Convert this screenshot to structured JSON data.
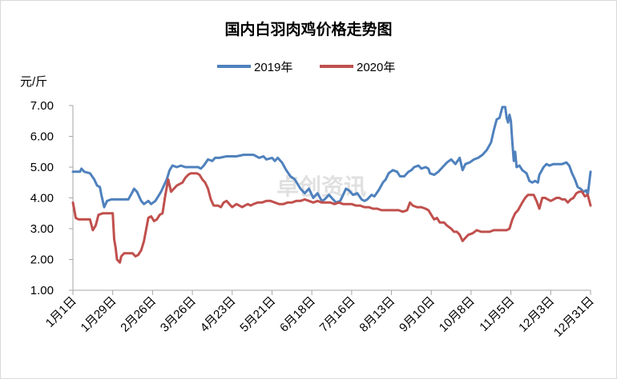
{
  "chart_data": {
    "type": "line",
    "title": "国内白羽肉鸡价格走势图",
    "unit_label": "元/斤",
    "watermark": "卓创资讯",
    "legend_position": "top-center",
    "grid": false,
    "ylim": [
      1.0,
      7.0
    ],
    "yticks": [
      "1.00",
      "2.00",
      "3.00",
      "4.00",
      "5.00",
      "6.00",
      "7.00"
    ],
    "xticks": [
      "1月1日",
      "1月29日",
      "2月26日",
      "3月26日",
      "4月23日",
      "5月21日",
      "6月18日",
      "7月16日",
      "8月13日",
      "9月10日",
      "10月8日",
      "11月5日",
      "12月3日",
      "12月31日"
    ],
    "xtick_days": [
      0,
      28,
      56,
      84,
      112,
      140,
      168,
      196,
      224,
      252,
      280,
      308,
      336,
      364
    ],
    "series": [
      {
        "name": "2019年",
        "color": "#4f81bd",
        "points": [
          [
            0,
            4.85
          ],
          [
            3,
            4.85
          ],
          [
            5,
            4.85
          ],
          [
            6,
            4.95
          ],
          [
            8,
            4.85
          ],
          [
            12,
            4.8
          ],
          [
            15,
            4.6
          ],
          [
            17,
            4.4
          ],
          [
            19,
            4.35
          ],
          [
            20,
            4.1
          ],
          [
            22,
            3.7
          ],
          [
            24,
            3.9
          ],
          [
            27,
            3.95
          ],
          [
            30,
            3.95
          ],
          [
            35,
            3.95
          ],
          [
            39,
            3.95
          ],
          [
            42,
            4.2
          ],
          [
            43,
            4.3
          ],
          [
            45,
            4.2
          ],
          [
            48,
            3.9
          ],
          [
            50,
            3.8
          ],
          [
            53,
            3.9
          ],
          [
            55,
            3.8
          ],
          [
            58,
            3.9
          ],
          [
            62,
            4.2
          ],
          [
            66,
            4.6
          ],
          [
            68,
            4.9
          ],
          [
            70,
            5.05
          ],
          [
            73,
            5.0
          ],
          [
            76,
            5.05
          ],
          [
            79,
            5.0
          ],
          [
            82,
            5.0
          ],
          [
            85,
            5.0
          ],
          [
            88,
            5.0
          ],
          [
            90,
            4.95
          ],
          [
            92,
            5.05
          ],
          [
            95,
            5.25
          ],
          [
            98,
            5.2
          ],
          [
            100,
            5.3
          ],
          [
            103,
            5.3
          ],
          [
            108,
            5.35
          ],
          [
            115,
            5.35
          ],
          [
            120,
            5.4
          ],
          [
            127,
            5.4
          ],
          [
            131,
            5.3
          ],
          [
            134,
            5.35
          ],
          [
            136,
            5.25
          ],
          [
            140,
            5.3
          ],
          [
            142,
            5.2
          ],
          [
            144,
            5.3
          ],
          [
            147,
            5.15
          ],
          [
            150,
            4.9
          ],
          [
            153,
            4.7
          ],
          [
            156,
            4.6
          ],
          [
            160,
            4.3
          ],
          [
            163,
            4.15
          ],
          [
            166,
            4.3
          ],
          [
            169,
            4.0
          ],
          [
            172,
            4.15
          ],
          [
            175,
            3.9
          ],
          [
            177,
            3.95
          ],
          [
            180,
            4.1
          ],
          [
            182,
            4.0
          ],
          [
            185,
            3.85
          ],
          [
            188,
            3.9
          ],
          [
            190,
            4.1
          ],
          [
            192,
            4.3
          ],
          [
            194,
            4.25
          ],
          [
            197,
            4.1
          ],
          [
            200,
            4.15
          ],
          [
            203,
            3.95
          ],
          [
            205,
            3.9
          ],
          [
            207,
            3.95
          ],
          [
            210,
            4.1
          ],
          [
            212,
            4.05
          ],
          [
            215,
            4.25
          ],
          [
            218,
            4.5
          ],
          [
            220,
            4.6
          ],
          [
            222,
            4.8
          ],
          [
            225,
            4.9
          ],
          [
            228,
            4.85
          ],
          [
            230,
            4.7
          ],
          [
            233,
            4.7
          ],
          [
            236,
            4.85
          ],
          [
            238,
            4.9
          ],
          [
            240,
            5.0
          ],
          [
            243,
            5.05
          ],
          [
            245,
            4.95
          ],
          [
            248,
            5.0
          ],
          [
            250,
            4.95
          ],
          [
            251,
            4.8
          ],
          [
            254,
            4.75
          ],
          [
            257,
            4.85
          ],
          [
            260,
            5.0
          ],
          [
            263,
            5.15
          ],
          [
            266,
            5.25
          ],
          [
            269,
            5.1
          ],
          [
            272,
            5.3
          ],
          [
            274,
            4.9
          ],
          [
            276,
            5.1
          ],
          [
            279,
            5.15
          ],
          [
            282,
            5.25
          ],
          [
            285,
            5.3
          ],
          [
            288,
            5.4
          ],
          [
            291,
            5.55
          ],
          [
            294,
            5.8
          ],
          [
            296,
            6.2
          ],
          [
            298,
            6.55
          ],
          [
            300,
            6.6
          ],
          [
            302,
            6.95
          ],
          [
            304,
            6.95
          ],
          [
            305,
            6.6
          ],
          [
            306,
            6.45
          ],
          [
            307,
            6.7
          ],
          [
            308,
            6.5
          ],
          [
            309,
            5.8
          ],
          [
            310,
            5.2
          ],
          [
            311,
            5.5
          ],
          [
            312,
            5.0
          ],
          [
            314,
            5.05
          ],
          [
            316,
            4.9
          ],
          [
            319,
            4.8
          ],
          [
            321,
            4.55
          ],
          [
            323,
            4.5
          ],
          [
            325,
            4.55
          ],
          [
            327,
            4.5
          ],
          [
            328,
            4.75
          ],
          [
            331,
            5.0
          ],
          [
            333,
            5.1
          ],
          [
            335,
            5.05
          ],
          [
            338,
            5.1
          ],
          [
            341,
            5.1
          ],
          [
            344,
            5.1
          ],
          [
            347,
            5.15
          ],
          [
            349,
            5.05
          ],
          [
            351,
            4.8
          ],
          [
            353,
            4.6
          ],
          [
            355,
            4.35
          ],
          [
            357,
            4.3
          ],
          [
            359,
            4.2
          ],
          [
            361,
            4.25
          ],
          [
            362,
            4.1
          ],
          [
            364,
            4.85
          ]
        ]
      },
      {
        "name": "2020年",
        "color": "#c0504d",
        "points": [
          [
            0,
            3.85
          ],
          [
            1,
            3.6
          ],
          [
            2,
            3.35
          ],
          [
            4,
            3.3
          ],
          [
            8,
            3.3
          ],
          [
            12,
            3.3
          ],
          [
            14,
            2.95
          ],
          [
            16,
            3.1
          ],
          [
            18,
            3.45
          ],
          [
            21,
            3.5
          ],
          [
            25,
            3.5
          ],
          [
            28,
            3.5
          ],
          [
            29,
            2.65
          ],
          [
            30,
            2.4
          ],
          [
            31,
            2.0
          ],
          [
            33,
            1.9
          ],
          [
            34,
            2.1
          ],
          [
            36,
            2.2
          ],
          [
            39,
            2.2
          ],
          [
            42,
            2.2
          ],
          [
            44,
            2.1
          ],
          [
            46,
            2.15
          ],
          [
            48,
            2.3
          ],
          [
            50,
            2.6
          ],
          [
            53,
            3.35
          ],
          [
            55,
            3.4
          ],
          [
            57,
            3.25
          ],
          [
            59,
            3.3
          ],
          [
            61,
            3.45
          ],
          [
            63,
            3.5
          ],
          [
            65,
            4.1
          ],
          [
            67,
            4.6
          ],
          [
            69,
            4.2
          ],
          [
            71,
            4.3
          ],
          [
            73,
            4.4
          ],
          [
            75,
            4.45
          ],
          [
            77,
            4.5
          ],
          [
            79,
            4.65
          ],
          [
            81,
            4.75
          ],
          [
            83,
            4.8
          ],
          [
            85,
            4.8
          ],
          [
            87,
            4.8
          ],
          [
            89,
            4.75
          ],
          [
            91,
            4.6
          ],
          [
            93,
            4.5
          ],
          [
            95,
            4.3
          ],
          [
            97,
            3.95
          ],
          [
            99,
            3.75
          ],
          [
            102,
            3.75
          ],
          [
            104,
            3.7
          ],
          [
            106,
            3.85
          ],
          [
            108,
            3.9
          ],
          [
            110,
            3.8
          ],
          [
            112,
            3.7
          ],
          [
            115,
            3.8
          ],
          [
            117,
            3.75
          ],
          [
            119,
            3.7
          ],
          [
            121,
            3.75
          ],
          [
            123,
            3.8
          ],
          [
            125,
            3.75
          ],
          [
            127,
            3.8
          ],
          [
            130,
            3.85
          ],
          [
            133,
            3.85
          ],
          [
            136,
            3.9
          ],
          [
            139,
            3.9
          ],
          [
            142,
            3.85
          ],
          [
            145,
            3.8
          ],
          [
            148,
            3.8
          ],
          [
            151,
            3.85
          ],
          [
            154,
            3.85
          ],
          [
            157,
            3.9
          ],
          [
            160,
            3.9
          ],
          [
            163,
            3.95
          ],
          [
            166,
            3.9
          ],
          [
            169,
            3.85
          ],
          [
            172,
            3.9
          ],
          [
            175,
            3.85
          ],
          [
            178,
            3.85
          ],
          [
            181,
            3.85
          ],
          [
            184,
            3.8
          ],
          [
            187,
            3.85
          ],
          [
            190,
            3.8
          ],
          [
            193,
            3.8
          ],
          [
            196,
            3.8
          ],
          [
            199,
            3.75
          ],
          [
            202,
            3.75
          ],
          [
            205,
            3.7
          ],
          [
            208,
            3.7
          ],
          [
            211,
            3.65
          ],
          [
            214,
            3.65
          ],
          [
            217,
            3.6
          ],
          [
            220,
            3.6
          ],
          [
            223,
            3.6
          ],
          [
            226,
            3.6
          ],
          [
            229,
            3.6
          ],
          [
            232,
            3.55
          ],
          [
            235,
            3.6
          ],
          [
            237,
            3.85
          ],
          [
            239,
            3.75
          ],
          [
            242,
            3.7
          ],
          [
            245,
            3.7
          ],
          [
            248,
            3.65
          ],
          [
            250,
            3.6
          ],
          [
            252,
            3.45
          ],
          [
            254,
            3.3
          ],
          [
            256,
            3.35
          ],
          [
            258,
            3.2
          ],
          [
            261,
            3.2
          ],
          [
            263,
            3.1
          ],
          [
            266,
            3.0
          ],
          [
            268,
            2.9
          ],
          [
            270,
            2.9
          ],
          [
            272,
            2.8
          ],
          [
            274,
            2.6
          ],
          [
            276,
            2.7
          ],
          [
            278,
            2.8
          ],
          [
            281,
            2.85
          ],
          [
            284,
            2.95
          ],
          [
            287,
            2.9
          ],
          [
            290,
            2.9
          ],
          [
            293,
            2.9
          ],
          [
            296,
            2.95
          ],
          [
            299,
            2.95
          ],
          [
            302,
            2.95
          ],
          [
            305,
            2.95
          ],
          [
            307,
            3.0
          ],
          [
            309,
            3.3
          ],
          [
            311,
            3.5
          ],
          [
            313,
            3.6
          ],
          [
            316,
            3.85
          ],
          [
            318,
            4.0
          ],
          [
            320,
            4.1
          ],
          [
            322,
            4.1
          ],
          [
            324,
            4.1
          ],
          [
            326,
            3.9
          ],
          [
            328,
            3.65
          ],
          [
            330,
            4.0
          ],
          [
            332,
            4.0
          ],
          [
            334,
            3.95
          ],
          [
            336,
            3.9
          ],
          [
            338,
            3.95
          ],
          [
            340,
            4.0
          ],
          [
            342,
            4.0
          ],
          [
            344,
            3.95
          ],
          [
            346,
            3.95
          ],
          [
            348,
            3.85
          ],
          [
            350,
            3.95
          ],
          [
            352,
            4.0
          ],
          [
            354,
            4.15
          ],
          [
            356,
            4.2
          ],
          [
            358,
            4.2
          ],
          [
            360,
            4.05
          ],
          [
            362,
            4.1
          ],
          [
            364,
            3.75
          ]
        ]
      }
    ]
  }
}
